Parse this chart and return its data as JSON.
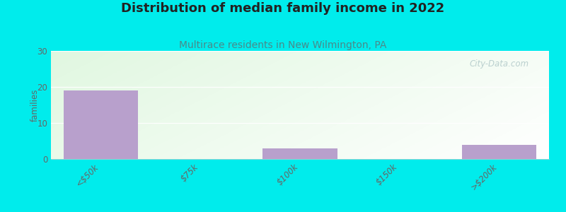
{
  "title": "Distribution of median family income in 2022",
  "subtitle": "Multirace residents in New Wilmington, PA",
  "categories": [
    "<$50k",
    "$75k",
    "$100k",
    "$150k",
    ">$200k"
  ],
  "values": [
    19,
    0,
    3,
    0,
    4
  ],
  "bar_color": "#b8a0cc",
  "ylabel": "families",
  "ylim": [
    0,
    30
  ],
  "yticks": [
    0,
    10,
    20,
    30
  ],
  "background_color": "#00ecec",
  "plot_bg_left": "#dff0e0",
  "plot_bg_right": "#f8ffff",
  "title_fontsize": 13,
  "title_color": "#222222",
  "subtitle_fontsize": 10,
  "subtitle_color": "#4a8a8a",
  "watermark": "City-Data.com",
  "watermark_color": "#b0c8c8"
}
